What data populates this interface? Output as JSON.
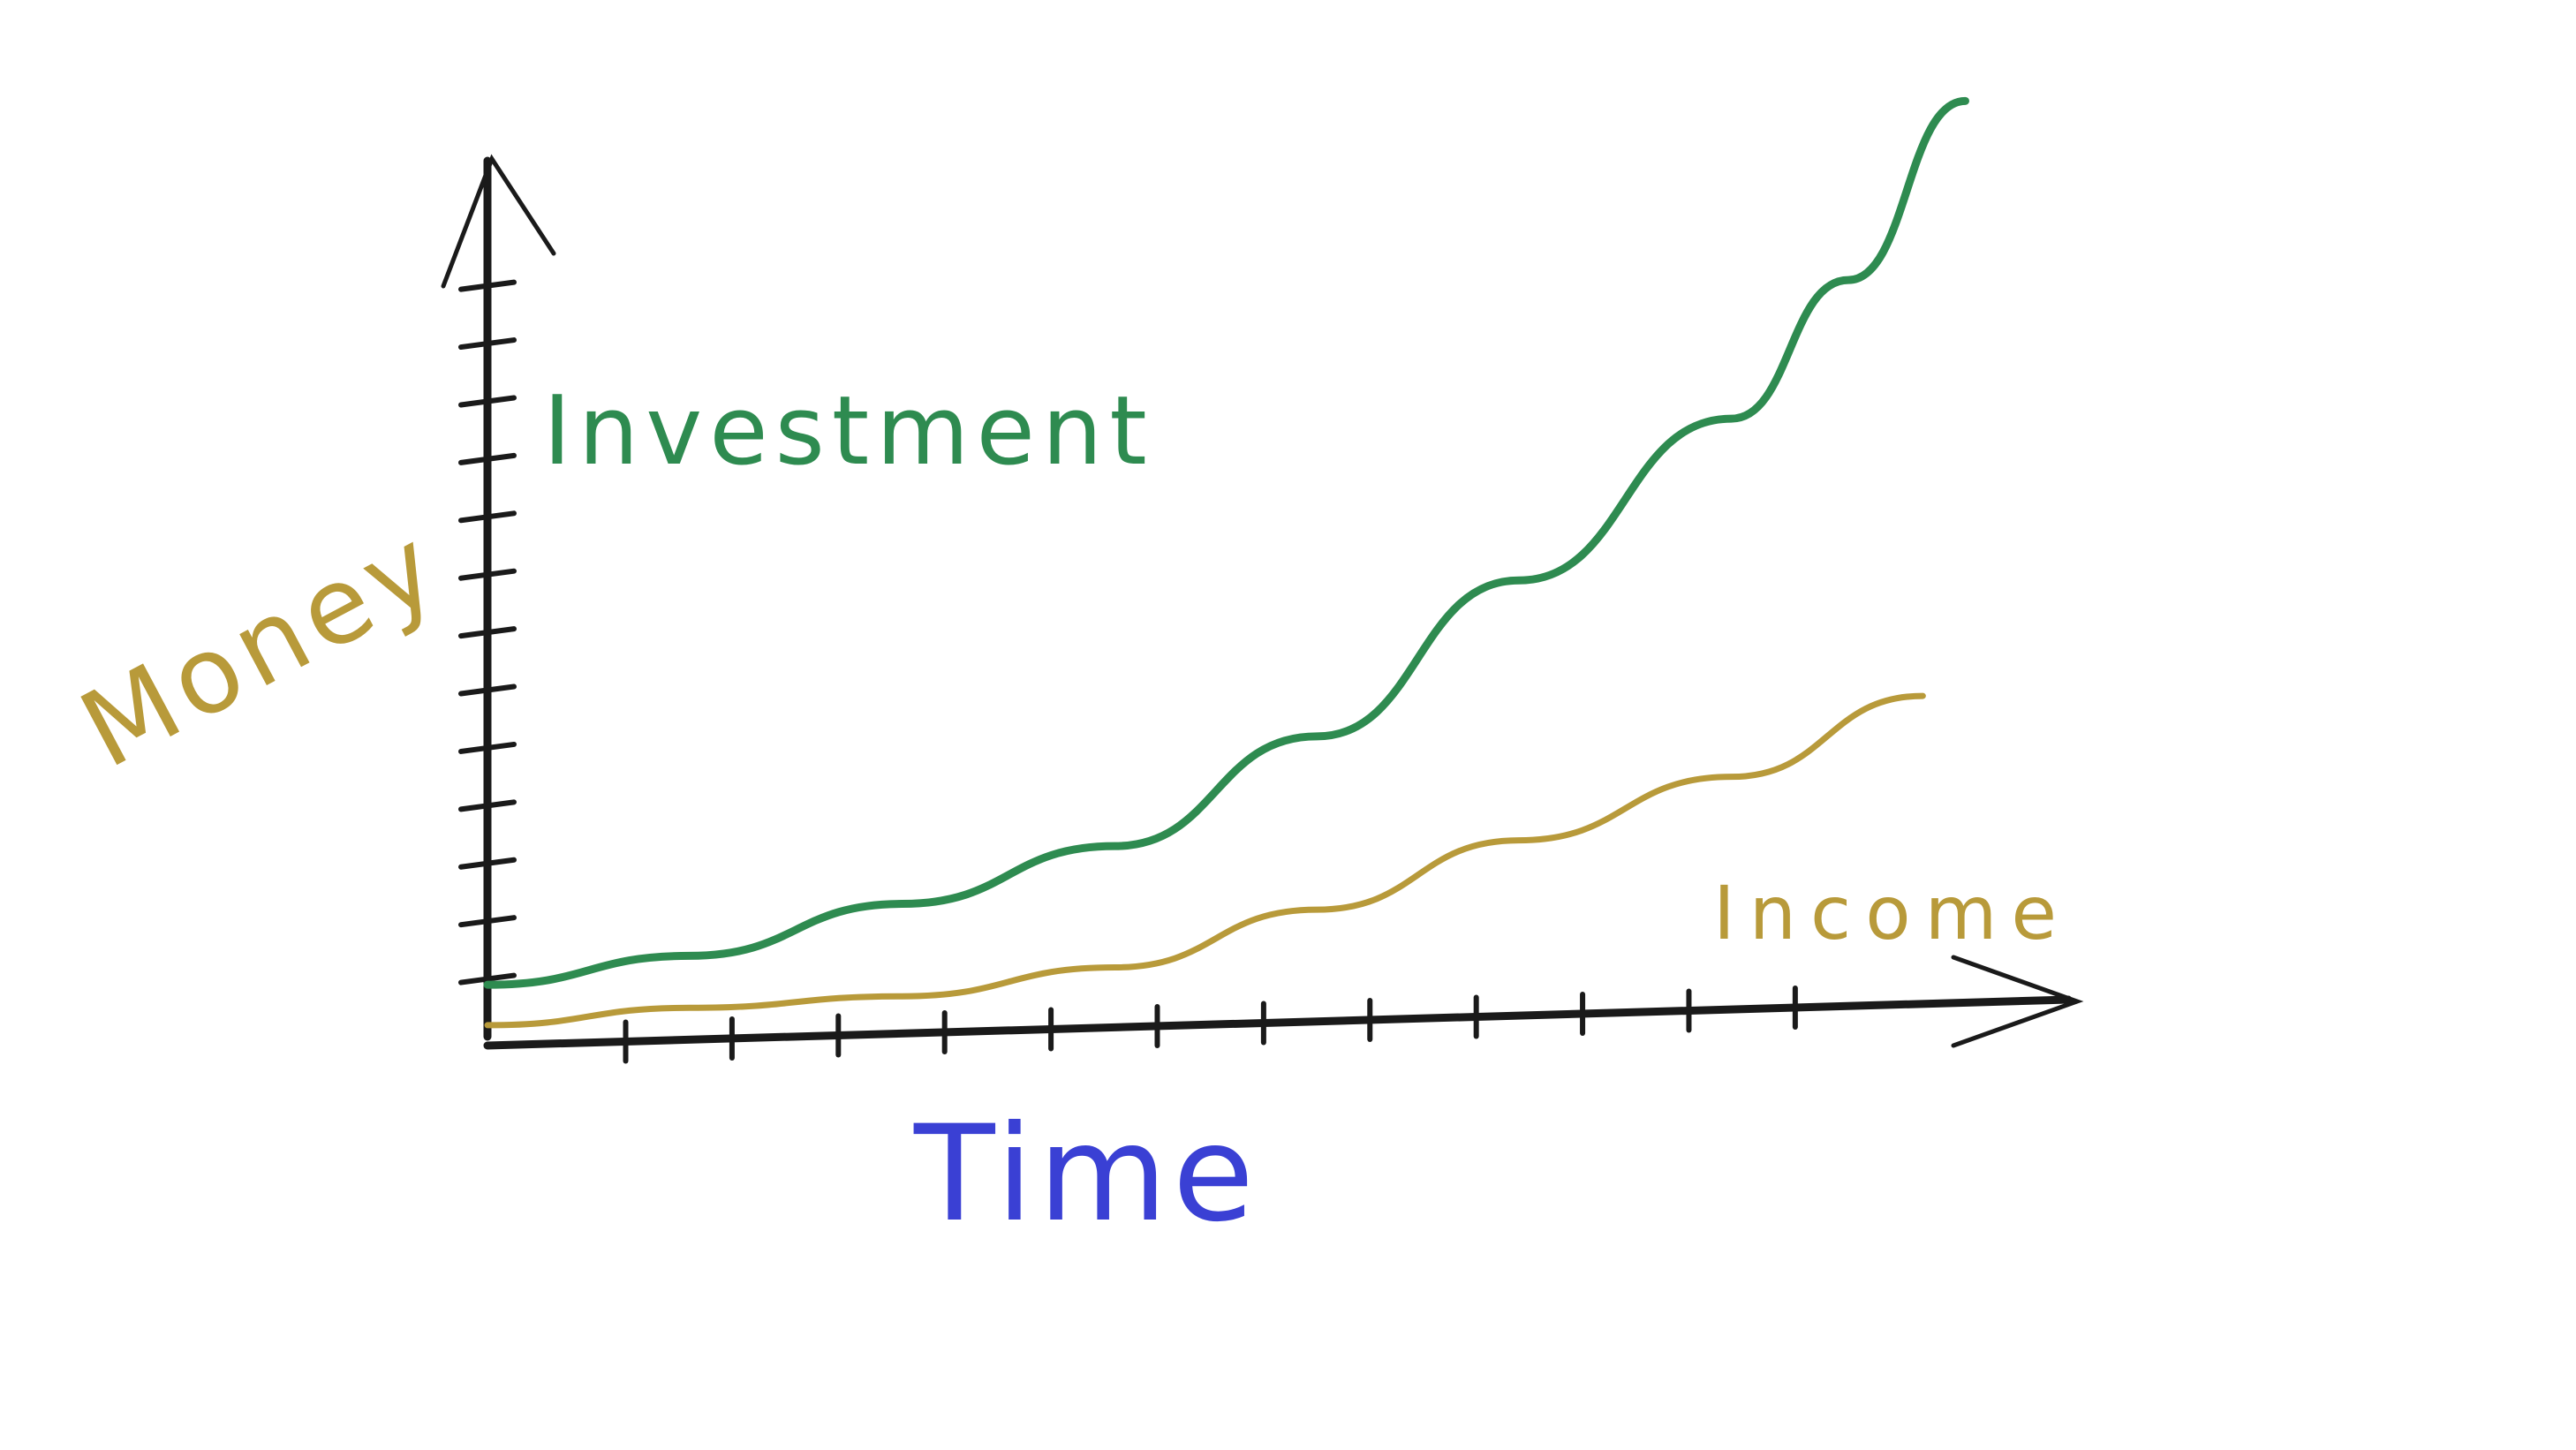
{
  "chart_data": {
    "type": "line",
    "x_label": "Time",
    "y_label": "Money",
    "x_label_color": "#3a40d4",
    "y_label_color": "#b89a3a",
    "series": [
      {
        "name": "Investment",
        "color": "#2e8b50",
        "x": [
          -0.3,
          1.6,
          3.6,
          5.6,
          7.5,
          9.4,
          11.4,
          12.5,
          13.6
        ],
        "values": [
          0.9,
          1.4,
          2.3,
          3.3,
          5.2,
          7.9,
          10.7,
          13.1,
          16.2
        ]
      },
      {
        "name": "Income",
        "color": "#b89a3a",
        "x": [
          -0.3,
          1.6,
          3.6,
          5.6,
          7.5,
          9.4,
          11.4,
          13.2
        ],
        "values": [
          0.2,
          0.5,
          0.7,
          1.2,
          2.2,
          3.4,
          4.5,
          5.9
        ]
      }
    ],
    "xlim": [
      -0.3,
      14.9
    ],
    "ylim": [
      0,
      17
    ],
    "xticks": [
      1,
      2,
      3,
      4,
      5,
      6,
      7,
      8,
      9,
      10,
      11,
      12
    ],
    "yticks": [
      1,
      2,
      3,
      4,
      5,
      6,
      7,
      8,
      9,
      10,
      11,
      12,
      13
    ]
  }
}
